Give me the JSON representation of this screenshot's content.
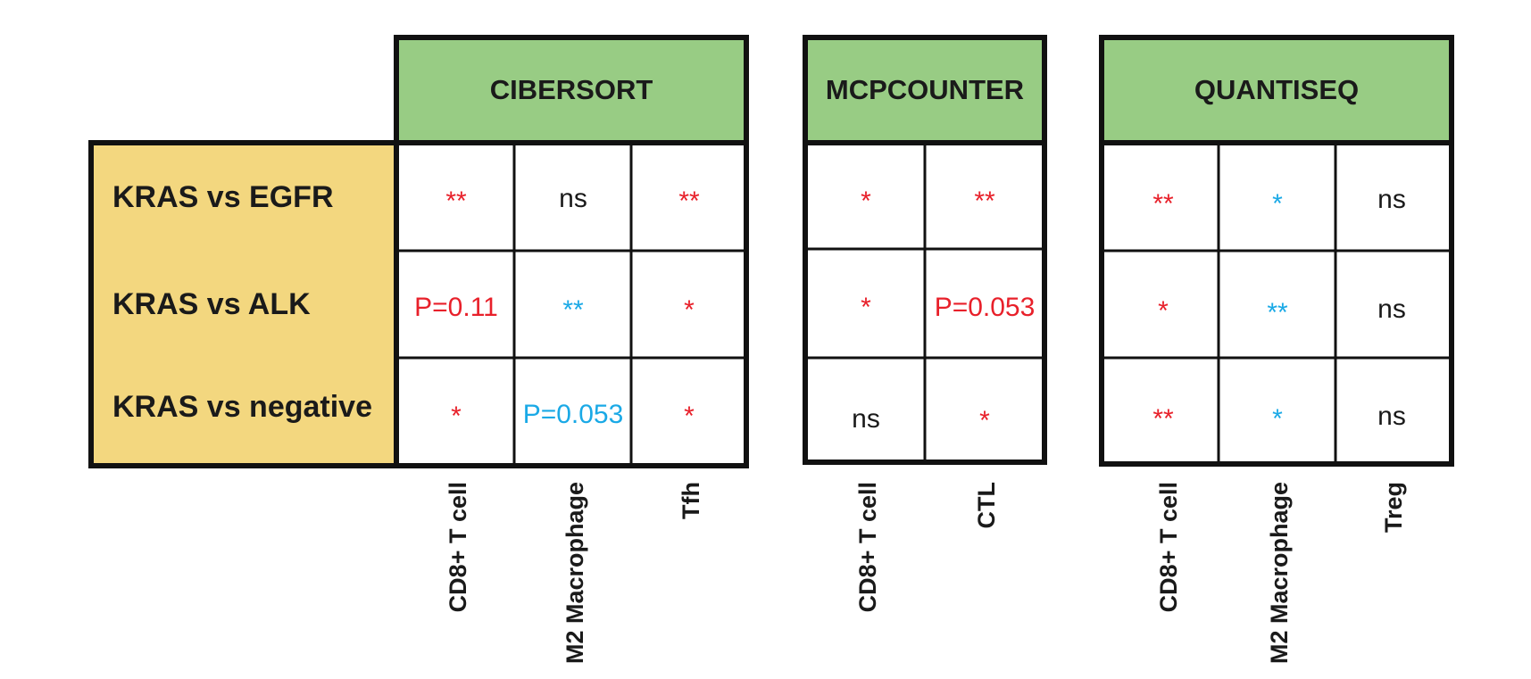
{
  "colors": {
    "header_green": "#98cc84",
    "row_label_yellow": "#f3d77f",
    "grid_line": "#111111",
    "red": "#e8202a",
    "cyan": "#1aa9e6",
    "black": "#1a1a1a"
  },
  "rows": [
    "KRAS vs EGFR",
    "KRAS vs ALK",
    "KRAS vs negative"
  ],
  "panels": [
    {
      "title": "CIBERSORT",
      "columns": [
        "CD8+ T cell",
        "M2 Macrophage",
        "Tfh"
      ],
      "cells": [
        [
          {
            "text": "**",
            "color": "red"
          },
          {
            "text": "ns",
            "color": "black"
          },
          {
            "text": "**",
            "color": "red"
          }
        ],
        [
          {
            "text": "P=0.11",
            "color": "red"
          },
          {
            "text": "**",
            "color": "cyan"
          },
          {
            "text": "*",
            "color": "red"
          }
        ],
        [
          {
            "text": "*",
            "color": "red"
          },
          {
            "text": "P=0.053",
            "color": "cyan"
          },
          {
            "text": "*",
            "color": "red"
          }
        ]
      ]
    },
    {
      "title": "MCPCOUNTER",
      "columns": [
        "CD8+ T cell",
        "CTL"
      ],
      "cells": [
        [
          {
            "text": "*",
            "color": "red"
          },
          {
            "text": "**",
            "color": "red"
          }
        ],
        [
          {
            "text": "*",
            "color": "red"
          },
          {
            "text": "P=0.053",
            "color": "red"
          }
        ],
        [
          {
            "text": "ns",
            "color": "black"
          },
          {
            "text": "*",
            "color": "red"
          }
        ]
      ]
    },
    {
      "title": "QUANTISEQ",
      "columns": [
        "CD8+ T cell",
        "M2 Macrophage",
        "Treg"
      ],
      "cells": [
        [
          {
            "text": "**",
            "color": "red"
          },
          {
            "text": "*",
            "color": "cyan"
          },
          {
            "text": "ns",
            "color": "black"
          }
        ],
        [
          {
            "text": "*",
            "color": "red"
          },
          {
            "text": "**",
            "color": "cyan"
          },
          {
            "text": "ns",
            "color": "black"
          }
        ],
        [
          {
            "text": "**",
            "color": "red"
          },
          {
            "text": "*",
            "color": "cyan"
          },
          {
            "text": "ns",
            "color": "black"
          }
        ]
      ]
    }
  ]
}
